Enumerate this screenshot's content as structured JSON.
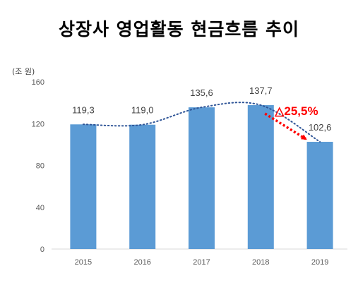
{
  "title": "상장사 영업활동 현금흐름 추이",
  "unit": "(조 원)",
  "chart_data": {
    "type": "bar",
    "categories": [
      "2015",
      "2016",
      "2017",
      "2018",
      "2019"
    ],
    "values": [
      119.3,
      119.0,
      135.6,
      137.7,
      102.6
    ],
    "value_labels": [
      "119,3",
      "119,0",
      "135,6",
      "137,7",
      "102,6"
    ],
    "ylim": [
      0,
      160
    ],
    "yticks": [
      0,
      40,
      80,
      120,
      160
    ],
    "grid": false,
    "bar_color": "#5b9bd5",
    "trend_line": "dotted smooth line through bar tops",
    "annotation": {
      "text": "△25,5%",
      "from_category": "2018",
      "to_category": "2019",
      "color": "#ff0000"
    }
  }
}
